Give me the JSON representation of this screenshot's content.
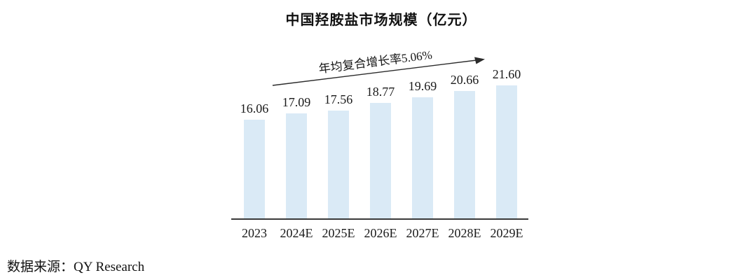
{
  "page": {
    "source_label": "数据来源：QY Research"
  },
  "chart_data": {
    "type": "bar",
    "title": "中国羟胺盐市场规模（亿元）",
    "annotation": "年均复合增长率5.06%",
    "categories": [
      "2023",
      "2024E",
      "2025E",
      "2026E",
      "2027E",
      "2028E",
      "2029E"
    ],
    "values": [
      16.06,
      17.09,
      17.56,
      18.77,
      19.69,
      20.66,
      21.6
    ],
    "value_labels": [
      "16.06",
      "17.09",
      "17.56",
      "18.77",
      "19.69",
      "20.66",
      "21.60"
    ],
    "xlabel": "",
    "ylabel": "",
    "ylim": [
      0,
      24
    ],
    "grid": false,
    "legend": null,
    "bar_color": "#daeaf6",
    "axis_color": "#3a3a3a",
    "arrow_color": "#2b2b2b",
    "text_color": "#1a1a1a"
  }
}
